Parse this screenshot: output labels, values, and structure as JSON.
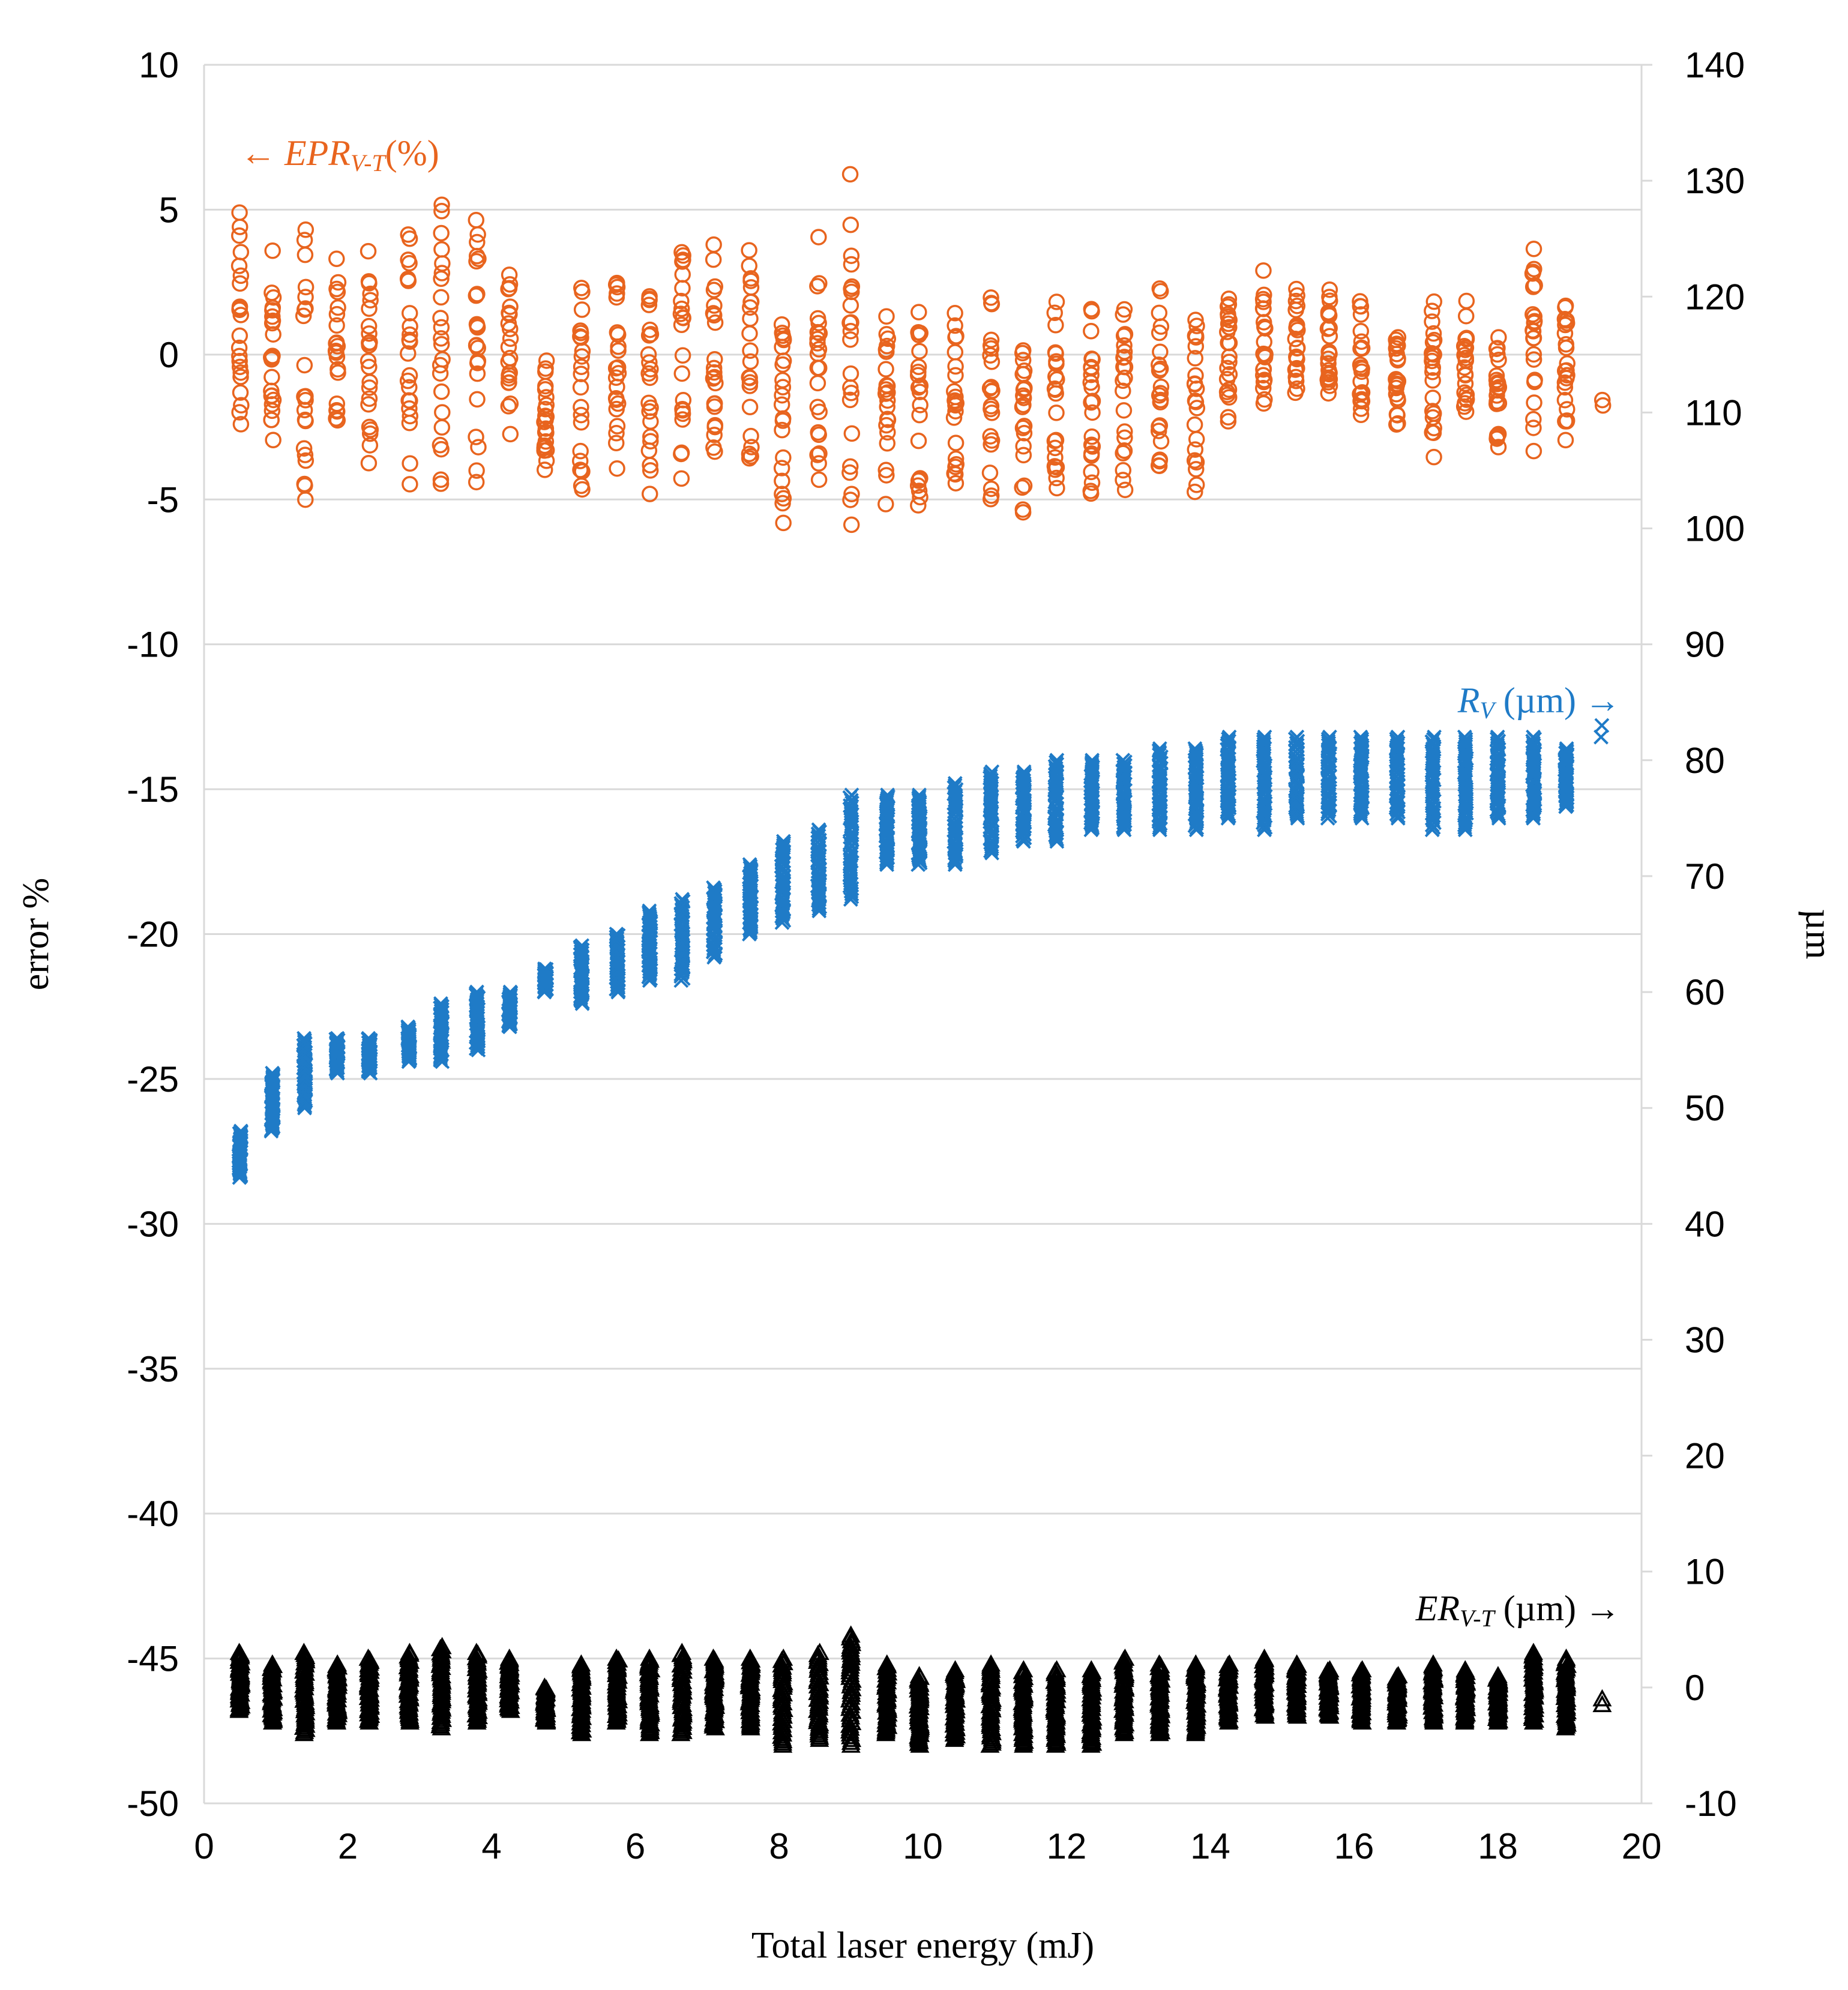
{
  "chart_data": {
    "type": "scatter",
    "title": "",
    "xlabel": "Total laser energy (mJ)",
    "ylabel_left": "error %",
    "ylabel_right": "µm",
    "xlim": [
      0,
      20
    ],
    "ylim_left": [
      -50,
      10
    ],
    "ylim_right": [
      -10,
      140
    ],
    "grid": "horizontal",
    "x_ticks": [
      "0",
      "2",
      "4",
      "6",
      "8",
      "10",
      "12",
      "14",
      "16",
      "18",
      "20"
    ],
    "y_left_ticks": [
      "10",
      "5",
      "0",
      "-5",
      "-10",
      "-15",
      "-20",
      "-25",
      "-30",
      "-35",
      "-40",
      "-45",
      "-50"
    ],
    "y_right_ticks": [
      "140",
      "130",
      "120",
      "110",
      "100",
      "90",
      "80",
      "70",
      "60",
      "50",
      "40",
      "30",
      "20",
      "10",
      "0",
      "-10"
    ],
    "annotations": {
      "epr": {
        "arrow": "←",
        "main": "EPR",
        "sub": "V-T",
        "suffix": "(%)"
      },
      "rv": {
        "main": "R",
        "sub": "V",
        "suffix": " (µm)",
        "arrow": "→"
      },
      "er": {
        "main": "ER",
        "sub": "V-T",
        "suffix": " (µm)",
        "arrow": "→"
      }
    },
    "x_groups": [
      0.5,
      0.95,
      1.4,
      1.85,
      2.3,
      2.85,
      3.3,
      3.8,
      4.25,
      4.75,
      5.25,
      5.75,
      6.2,
      6.65,
      7.1,
      7.6,
      8.05,
      8.55,
      9.0,
      9.5,
      9.95,
      10.45,
      10.95,
      11.4,
      11.85,
      12.35,
      12.8,
      13.3,
      13.8,
      14.25,
      14.75,
      15.2,
      15.65,
      16.1,
      16.6,
      17.1,
      17.55,
      18.0,
      18.5,
      18.95,
      19.45
    ],
    "series": [
      {
        "name": "EPR V-T (%)",
        "axis": "left",
        "marker": "circle",
        "color": "#E8641E",
        "y_min": [
          -3.8,
          -4.3,
          -6.9,
          -3.8,
          -4.3,
          -5.0,
          -5.3,
          -4.9,
          -2.8,
          -4.5,
          -5.9,
          -4.5,
          -5.6,
          -5.1,
          -4.9,
          -5.5,
          -6.5,
          -5.5,
          -6.6,
          -5.6,
          -6.2,
          -5.6,
          -5.8,
          -6.0,
          -6.1,
          -6.1,
          -5.3,
          -5.7,
          -5.1,
          -2.8,
          -2.4,
          -2.4,
          -2.2,
          -2.9,
          -2.9,
          -3.8,
          -2.9,
          -3.6,
          -3.4,
          -3.6,
          -1.8
        ],
        "y_max": [
          5.4,
          4.1,
          5.6,
          4.0,
          3.9,
          5.2,
          6.2,
          5.5,
          4.2,
          -0.1,
          3.0,
          3.8,
          3.4,
          5.0,
          4.0,
          4.6,
          3.8,
          4.5,
          6.8,
          2.8,
          2.0,
          2.3,
          2.8,
          2.4,
          2.3,
          2.3,
          3.0,
          2.7,
          2.7,
          2.7,
          2.9,
          2.7,
          2.4,
          2.2,
          1.5,
          2.5,
          1.9,
          1.2,
          4.3,
          2.8,
          -1.5
        ]
      },
      {
        "name": "R V (µm)",
        "axis": "right",
        "marker": "x",
        "color": "#1F7BC7",
        "y_min": [
          44,
          48,
          50,
          53,
          53,
          54,
          54,
          55,
          57,
          60,
          59,
          60,
          61,
          61,
          63,
          65,
          66,
          67,
          68,
          71,
          71,
          71,
          72,
          73,
          73,
          74,
          74,
          74,
          74,
          75,
          74,
          75,
          75,
          75,
          75,
          74,
          74,
          75,
          75,
          76,
          82
        ],
        "y_max": [
          48,
          53,
          56,
          56,
          56,
          57,
          59,
          60,
          60,
          62,
          64,
          65,
          67,
          68,
          69,
          71,
          73,
          74,
          77,
          77,
          77,
          78,
          79,
          79,
          80,
          80,
          80,
          81,
          81,
          82,
          82,
          82,
          82,
          82,
          82,
          82,
          82,
          82,
          82,
          81,
          83
        ]
      },
      {
        "name": "ER V-T (µm)",
        "axis": "right",
        "marker": "triangle",
        "color": "#000000",
        "y_min": [
          -2,
          -3,
          -4,
          -3,
          -3,
          -3,
          -3.5,
          -3,
          -2,
          -3,
          -4,
          -3,
          -4,
          -4,
          -3.5,
          -3.5,
          -5,
          -4.5,
          -5,
          -4,
          -5,
          -4.5,
          -5,
          -5,
          -5,
          -5,
          -4,
          -4,
          -4,
          -3,
          -2.5,
          -2.5,
          -2.5,
          -3,
          -3,
          -3,
          -3,
          -3,
          -3,
          -3.5,
          -1.5
        ],
        "y_max": [
          3,
          2,
          3,
          2,
          2.5,
          3,
          3.5,
          3,
          2.5,
          0,
          2,
          2.5,
          2.5,
          3,
          2.5,
          2.5,
          2.5,
          3,
          4.5,
          2,
          1,
          1.5,
          2,
          1.5,
          1.5,
          1.5,
          2.5,
          2,
          2,
          2,
          2.5,
          2,
          1.5,
          1.5,
          1,
          2,
          1.5,
          1,
          3,
          2.5,
          -1
        ]
      }
    ]
  }
}
